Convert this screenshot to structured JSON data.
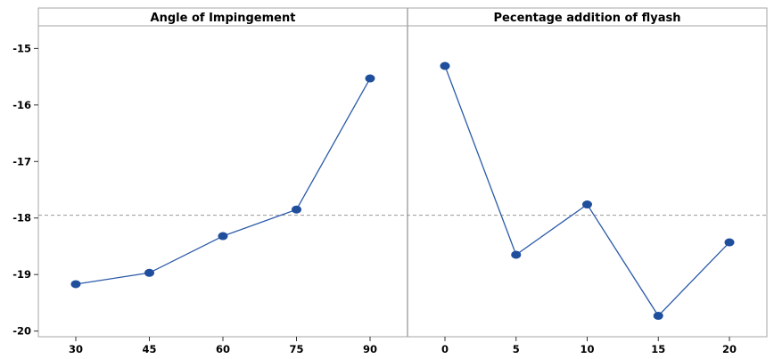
{
  "chart_data": {
    "type": "line",
    "ylim": [
      -20.1,
      -14.6
    ],
    "yticks": [
      -15,
      -16,
      -17,
      -18,
      -19,
      -20
    ],
    "reference_line": -17.95,
    "grid": false,
    "colors": {
      "line": "#2a5aa8",
      "marker": "#1f4e9c",
      "reference": "#9a9a9a",
      "frame": "#a6a6a6"
    },
    "panels": [
      {
        "title": "Angle of Impingement",
        "categories": [
          "30",
          "45",
          "60",
          "75",
          "90"
        ],
        "values": [
          -19.17,
          -18.97,
          -18.32,
          -17.85,
          -15.53
        ]
      },
      {
        "title": "Pecentage addition of flyash",
        "categories": [
          "0",
          "5",
          "10",
          "15",
          "20"
        ],
        "values": [
          -15.31,
          -18.65,
          -17.76,
          -19.73,
          -18.43
        ]
      }
    ]
  }
}
